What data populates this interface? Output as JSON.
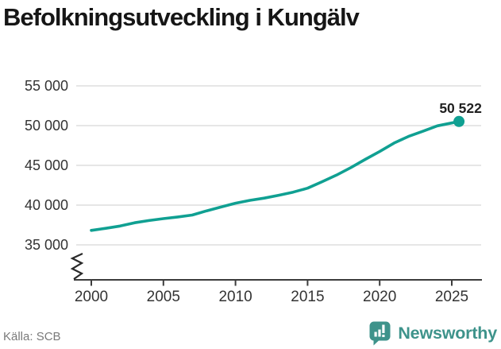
{
  "title": "Befolkningsutveckling i Kungälv",
  "chart_data": {
    "type": "line",
    "title": "Befolkningsutveckling i Kungälv",
    "xlabel": "",
    "ylabel": "",
    "series": [
      {
        "name": "Befolkning i Kungälv",
        "x": [
          2000,
          2001,
          2002,
          2003,
          2004,
          2005,
          2006,
          2007,
          2008,
          2009,
          2010,
          2011,
          2012,
          2013,
          2014,
          2015,
          2016,
          2017,
          2018,
          2019,
          2020,
          2021,
          2022,
          2023,
          2024,
          2025.5
        ],
        "values": [
          36818,
          37081,
          37369,
          37777,
          38064,
          38302,
          38514,
          38753,
          39283,
          39761,
          40245,
          40602,
          40877,
          41240,
          41633,
          42134,
          42939,
          43766,
          44722,
          45746,
          46741,
          47808,
          48636,
          49287,
          49966,
          50522
        ]
      }
    ],
    "x_ticks": [
      2000,
      2005,
      2010,
      2015,
      2020,
      2025
    ],
    "x_tick_labels": [
      "2000",
      "2005",
      "2010",
      "2015",
      "2020",
      "2025"
    ],
    "y_ticks": [
      35000,
      40000,
      45000,
      50000,
      55000
    ],
    "y_tick_labels": [
      "35 000",
      "40 000",
      "45 000",
      "50 000",
      "55 000"
    ],
    "ylim": [
      35000,
      55000
    ],
    "xlim": [
      2000,
      2025.5
    ],
    "grid": "horizontal",
    "legend": "none",
    "axis_break": true,
    "last_value_label": "50 522",
    "line_color": "#10a092",
    "grid_color": "#e3e3e3",
    "axis_color": "#3c3c3c",
    "tick_label_color": "#333333",
    "value_label_color": "#1f1f1f"
  },
  "footer": {
    "source": "Källa: SCB",
    "brand": "Newsworthy",
    "brand_color": "#3e938b"
  }
}
